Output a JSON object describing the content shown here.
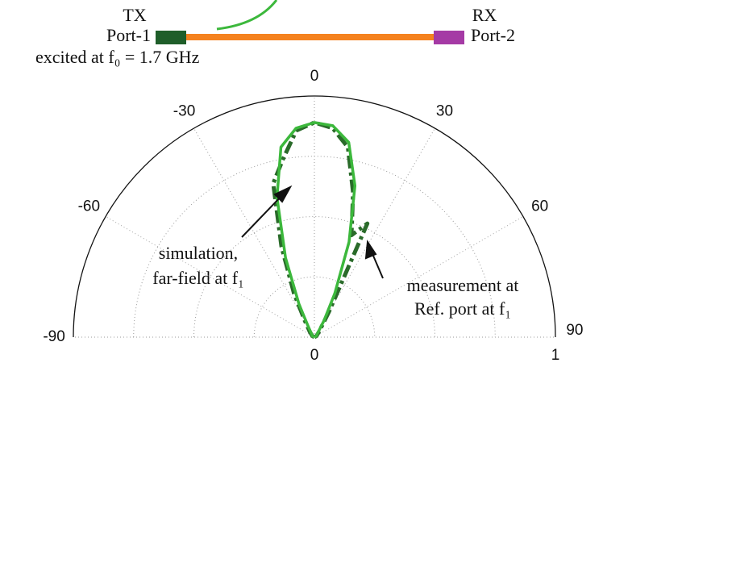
{
  "chart_data": {
    "type": "polar",
    "theta": [
      -90,
      -60,
      -40,
      -30,
      -25,
      -20,
      -15,
      -10,
      -5,
      0,
      5,
      10,
      15,
      20,
      25,
      30,
      40,
      60,
      90
    ],
    "thetaticks": [
      -90,
      -60,
      -30,
      0,
      30,
      60,
      90
    ],
    "rlim": [
      0,
      1
    ],
    "rticks": [
      0,
      1
    ],
    "rgrid": [
      0.25,
      0.5,
      0.75
    ],
    "grid": true,
    "series": [
      {
        "color": "#2a6b2a",
        "style": "dashdot",
        "values": [
          0,
          0.01,
          0.03,
          0.08,
          0.2,
          0.4,
          0.66,
          0.75,
          0.86,
          0.89,
          0.87,
          0.8,
          0.62,
          0.45,
          0.52,
          0.12,
          0.03,
          0.01,
          0
        ]
      },
      {
        "color": "#3cb83c",
        "style": "solid",
        "values": [
          0,
          0.01,
          0.02,
          0.05,
          0.15,
          0.35,
          0.6,
          0.8,
          0.87,
          0.89,
          0.88,
          0.82,
          0.65,
          0.42,
          0.2,
          0.08,
          0.02,
          0.01,
          0
        ]
      }
    ],
    "schematic": {
      "tx": "TX",
      "port1": "Port-1",
      "rx": "RX",
      "port2": "Port-2",
      "excitation": "excited at f₀ = 1.7 GHz"
    },
    "annotations": [
      [
        "simulation,",
        "far-field at f₁"
      ],
      [
        "measurement at",
        "Ref. port at f₁"
      ]
    ]
  }
}
